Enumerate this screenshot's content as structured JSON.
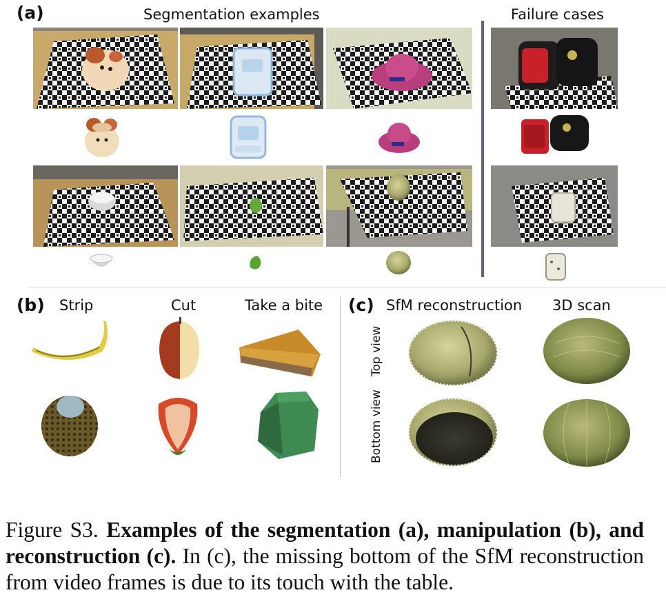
{
  "panel_a": {
    "label": "(a)",
    "seg_header": "Segmentation examples",
    "fail_header": "Failure cases",
    "examples": [
      {
        "object": "plush-toy"
      },
      {
        "object": "plastic-box"
      },
      {
        "object": "pink-hat"
      },
      {
        "object": "bowl"
      },
      {
        "object": "leaf"
      },
      {
        "object": "melon"
      }
    ],
    "failures": [
      {
        "object": "backpack"
      },
      {
        "object": "white-bag"
      }
    ]
  },
  "panel_b": {
    "label": "(b)",
    "columns": [
      "Strip",
      "Cut",
      "Take a bite"
    ],
    "row1": [
      "banana",
      "apple-half",
      "cake-slice"
    ],
    "row2": [
      "durian",
      "strawberry-half",
      "green-cake"
    ]
  },
  "panel_c": {
    "label": "(c)",
    "col_sfm": "SfM reconstruction",
    "col_scan": "3D scan",
    "row_top": "Top view",
    "row_bottom": "Bottom view"
  },
  "caption": {
    "lead": "Figure S3. ",
    "bold": "Examples of the segmentation (a), manipulation (b), and reconstruction (c).",
    "rest": " In (c), the missing bottom of the SfM reconstruction from video frames is due to its touch with the table."
  },
  "colors": {
    "separator": "#5a6a7a",
    "table_wood": "#c9a96a",
    "melon_green": "#a9a978"
  }
}
